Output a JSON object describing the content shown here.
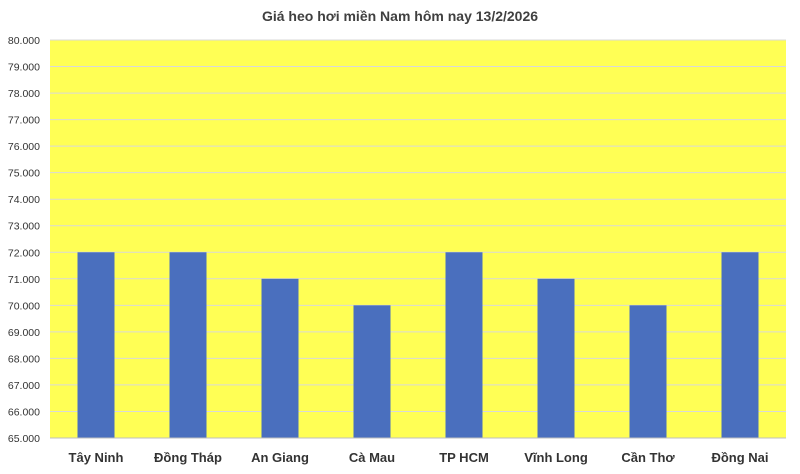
{
  "chart_data": {
    "type": "bar",
    "title": "Giá heo hơi miền Nam hôm nay 13/2/2026",
    "categories": [
      "Tây Ninh",
      "Đồng Tháp",
      "An Giang",
      "Cà Mau",
      "TP HCM",
      "Vĩnh Long",
      "Cần Thơ",
      "Đồng Nai"
    ],
    "values": [
      72000,
      72000,
      71000,
      70000,
      72000,
      71000,
      70000,
      72000
    ],
    "ylim": [
      65000,
      80000
    ],
    "yticks": [
      "65.000",
      "66.000",
      "67.000",
      "68.000",
      "69.000",
      "70.000",
      "71.000",
      "72.000",
      "73.000",
      "74.000",
      "75.000",
      "76.000",
      "77.000",
      "78.000",
      "79.000",
      "80.000"
    ],
    "grid": true,
    "legend": "none",
    "colors": {
      "bar": "#4A6FBE",
      "plot_background": "#FFFF55",
      "grid": "#D9D9D9"
    }
  }
}
